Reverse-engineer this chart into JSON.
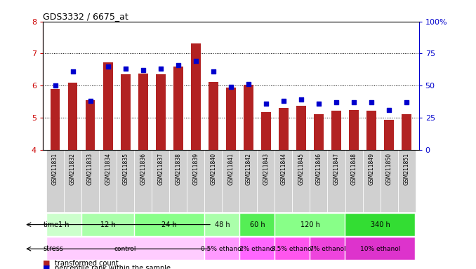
{
  "title": "GDS3332 / 6675_at",
  "samples": [
    "GSM211831",
    "GSM211832",
    "GSM211833",
    "GSM211834",
    "GSM211835",
    "GSM211836",
    "GSM211837",
    "GSM211838",
    "GSM211839",
    "GSM211840",
    "GSM211841",
    "GSM211842",
    "GSM211843",
    "GSM211844",
    "GSM211845",
    "GSM211846",
    "GSM211847",
    "GSM211848",
    "GSM211849",
    "GSM211850",
    "GSM211851"
  ],
  "transformed_count": [
    5.9,
    6.1,
    5.55,
    6.72,
    6.35,
    6.38,
    6.35,
    6.6,
    7.32,
    6.12,
    5.95,
    6.02,
    5.18,
    5.3,
    5.38,
    5.12,
    5.22,
    5.25,
    5.22,
    4.93,
    5.12
  ],
  "percentile_rank": [
    50,
    61,
    38,
    65,
    63,
    62,
    63,
    66,
    69,
    61,
    49,
    51,
    36,
    38,
    39,
    36,
    37,
    37,
    37,
    31,
    37
  ],
  "bar_color": "#b22222",
  "dot_color": "#0000cd",
  "cell_bg": "#d0d0d0",
  "ylim_left": [
    4,
    8
  ],
  "ylim_right": [
    0,
    100
  ],
  "yticks_left": [
    4,
    5,
    6,
    7,
    8
  ],
  "yticks_right": [
    0,
    25,
    50,
    75,
    100
  ],
  "ytick_labels_right": [
    "0",
    "25",
    "50",
    "75",
    "100%"
  ],
  "grid_lines": [
    5,
    6,
    7
  ],
  "time_groups": [
    {
      "label": "1 h",
      "start": 0,
      "end": 2,
      "color": "#ccffcc"
    },
    {
      "label": "12 h",
      "start": 2,
      "end": 5,
      "color": "#aaffaa"
    },
    {
      "label": "24 h",
      "start": 5,
      "end": 9,
      "color": "#88ff88"
    },
    {
      "label": "48 h",
      "start": 9,
      "end": 11,
      "color": "#aaffaa"
    },
    {
      "label": "60 h",
      "start": 11,
      "end": 13,
      "color": "#55ee55"
    },
    {
      "label": "120 h",
      "start": 13,
      "end": 17,
      "color": "#88ff88"
    },
    {
      "label": "340 h",
      "start": 17,
      "end": 21,
      "color": "#33dd33"
    }
  ],
  "stress_groups": [
    {
      "label": "control",
      "start": 0,
      "end": 9,
      "color": "#ffccff"
    },
    {
      "label": "0.5% ethanol",
      "start": 9,
      "end": 11,
      "color": "#ff99ff"
    },
    {
      "label": "2% ethanol",
      "start": 11,
      "end": 13,
      "color": "#ff66ff"
    },
    {
      "label": "3.5% ethanol",
      "start": 13,
      "end": 15,
      "color": "#ff55ee"
    },
    {
      "label": "7% ethanol",
      "start": 15,
      "end": 17,
      "color": "#ee44dd"
    },
    {
      "label": "10% ethanol",
      "start": 17,
      "end": 21,
      "color": "#dd33cc"
    }
  ],
  "legend_items": [
    {
      "label": "transformed count",
      "color": "#b22222"
    },
    {
      "label": "percentile rank within the sample",
      "color": "#0000cd"
    }
  ],
  "left_axis_color": "#cc0000",
  "right_axis_color": "#0000cd",
  "bar_width": 0.55
}
